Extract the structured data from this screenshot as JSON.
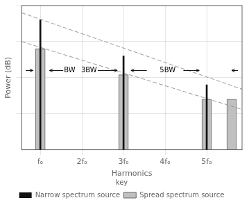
{
  "chart_data": {
    "type": "bar",
    "xlabel": "Harmonics",
    "ylabel": "Power (dB)",
    "xlim": [
      0.55,
      5.85
    ],
    "xticks": [
      {
        "value": 1,
        "label": "fₒ"
      },
      {
        "value": 2,
        "label": "2fₒ"
      },
      {
        "value": 3,
        "label": "3fₒ"
      },
      {
        "value": 4,
        "label": "4fₒ"
      },
      {
        "value": 5,
        "label": "5fₒ"
      }
    ],
    "ylim": [
      0,
      10
    ],
    "yticks": [
      2.5,
      5.0,
      7.5,
      10.0
    ],
    "tick_labels": "x",
    "grid": true,
    "legend": "bottom",
    "legend_title": "key",
    "series": [
      {
        "name": "Narrow spectrum source",
        "type": "bar",
        "color": "#111111",
        "x": [
          1,
          3,
          5
        ],
        "values": [
          9.0,
          6.5,
          4.5
        ]
      },
      {
        "name": "Spread spectrum source",
        "type": "bar",
        "color": "#c0c0c0",
        "x": [
          1.0,
          3.0,
          5.0,
          5.6
        ],
        "values": [
          7.0,
          5.2,
          3.5,
          3.5
        ]
      },
      {
        "type": "line",
        "line_style": "dashed",
        "color": "#999999",
        "x": [
          0.55,
          5.85
        ],
        "values": [
          9.5,
          4.2
        ]
      },
      {
        "type": "line",
        "line_style": "dashed",
        "color": "#999999",
        "x": [
          0.55,
          5.85
        ],
        "values": [
          7.5,
          2.8
        ]
      }
    ],
    "annotations": [
      {
        "text": "BW",
        "x": 1.57,
        "y": 5.5,
        "align": "left"
      },
      {
        "text": "3BW",
        "x": 2.36,
        "y": 5.5,
        "align": "right"
      },
      {
        "text": "5BW",
        "x": 4.06,
        "y": 5.5,
        "align": "center"
      }
    ],
    "arrows": [
      {
        "x": [
          0.65,
          0.82
        ],
        "y": [
          5.5,
          5.5
        ]
      },
      {
        "x": [
          1.55,
          1.22
        ],
        "y": [
          5.5,
          5.5
        ]
      },
      {
        "x": [
          2.38,
          2.85
        ],
        "y": [
          5.5,
          5.5
        ]
      },
      {
        "x": [
          3.56,
          3.18
        ],
        "y": [
          5.5,
          5.5
        ]
      },
      {
        "x": [
          4.44,
          4.82
        ],
        "y": [
          5.5,
          5.5
        ]
      },
      {
        "x": [
          5.75,
          5.6
        ],
        "y": [
          5.5,
          5.5
        ]
      }
    ]
  }
}
